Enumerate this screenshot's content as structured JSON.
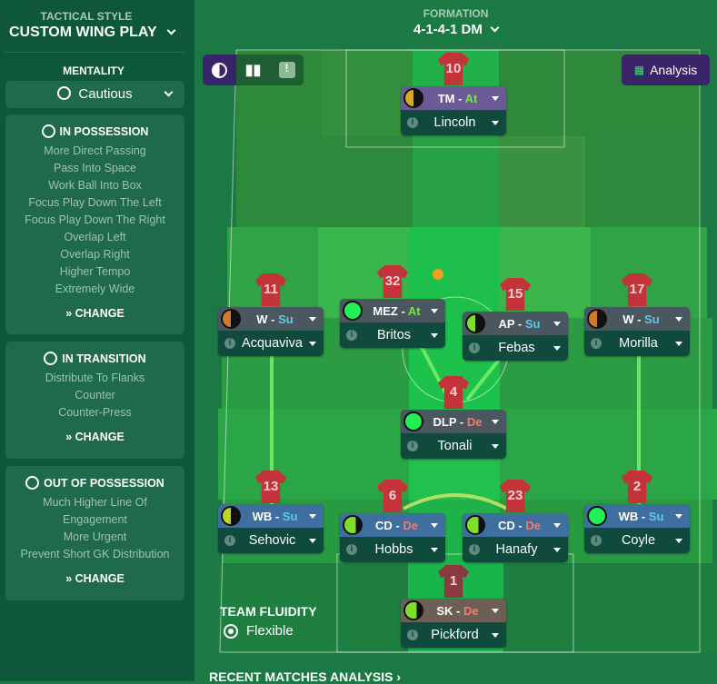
{
  "sidebar": {
    "style_caption": "TACTICAL STYLE",
    "style": "CUSTOM WING PLAY",
    "mentality_caption": "MENTALITY",
    "mentality": "Cautious",
    "panels": [
      {
        "title": "IN POSSESSION",
        "items": [
          "More Direct Passing",
          "Pass Into Space",
          "Work Ball Into Box",
          "Focus Play Down The Left",
          "Focus Play Down The Right",
          "Overlap Left",
          "Overlap Right",
          "Higher Tempo",
          "Extremely Wide"
        ],
        "change": "CHANGE"
      },
      {
        "title": "IN TRANSITION",
        "items": [
          "Distribute To Flanks",
          "Counter",
          "Counter-Press"
        ],
        "change": "CHANGE"
      },
      {
        "title": "OUT OF POSSESSION",
        "items": [
          "Much Higher Line Of",
          "Engagement",
          "More Urgent",
          "Prevent Short GK Distribution"
        ],
        "change": "CHANGE"
      }
    ]
  },
  "formation": {
    "caption": "FORMATION",
    "value": "4-1-4-1 DM"
  },
  "analysis_label": "Analysis",
  "fluidity": {
    "caption": "TEAM FLUIDITY",
    "value": "Flexible"
  },
  "recent": "RECENT MATCHES ANALYSIS ›",
  "duty_colors": {
    "At": "#7ee24a",
    "Su": "#5ec8ea",
    "De": "#f27b6e"
  },
  "players": [
    {
      "num": "10",
      "role": "TM",
      "duty": "At",
      "name": "Lincoln",
      "hd": "#6a5b96",
      "c1": "#d4a92a",
      "c2": "#111",
      "fill": 0.5
    },
    {
      "num": "11",
      "role": "W",
      "duty": "Su",
      "name": "Acquaviva",
      "hd": "#4a5660",
      "c1": "#d07a2a",
      "c2": "#111",
      "fill": 0.5
    },
    {
      "num": "32",
      "role": "MEZ",
      "duty": "At",
      "name": "Britos",
      "hd": "#4a5660",
      "c1": "#22ee55",
      "c2": "#22ee55",
      "fill": 1
    },
    {
      "num": "15",
      "role": "AP",
      "duty": "Su",
      "name": "Febas",
      "hd": "#4a5660",
      "c1": "#7ee02a",
      "c2": "#111",
      "fill": 0.5
    },
    {
      "num": "17",
      "role": "W",
      "duty": "Su",
      "name": "Morilla",
      "hd": "#4a5660",
      "c1": "#d07a2a",
      "c2": "#111",
      "fill": 0.5
    },
    {
      "num": "4",
      "role": "DLP",
      "duty": "De",
      "name": "Tonali",
      "hd": "#4a5660",
      "c1": "#22ee55",
      "c2": "#22ee55",
      "fill": 1
    },
    {
      "num": "13",
      "role": "WB",
      "duty": "Su",
      "name": "Sehovic",
      "hd": "#3f6f9f",
      "c1": "#c0d42a",
      "c2": "#111",
      "fill": 0.5
    },
    {
      "num": "6",
      "role": "CD",
      "duty": "De",
      "name": "Hobbs",
      "hd": "#3f6f9f",
      "c1": "#7ee02a",
      "c2": "#111",
      "fill": 0.7
    },
    {
      "num": "23",
      "role": "CD",
      "duty": "De",
      "name": "Hanafy",
      "hd": "#3f6f9f",
      "c1": "#7ee02a",
      "c2": "#111",
      "fill": 0.7
    },
    {
      "num": "2",
      "role": "WB",
      "duty": "Su",
      "name": "Coyle",
      "hd": "#3f6f9f",
      "c1": "#22ee55",
      "c2": "#22ee55",
      "fill": 1
    },
    {
      "num": "1",
      "role": "SK",
      "duty": "De",
      "name": "Pickford",
      "hd": "#6e5f56",
      "c1": "#7ee02a",
      "c2": "#111",
      "fill": 0.7
    }
  ]
}
